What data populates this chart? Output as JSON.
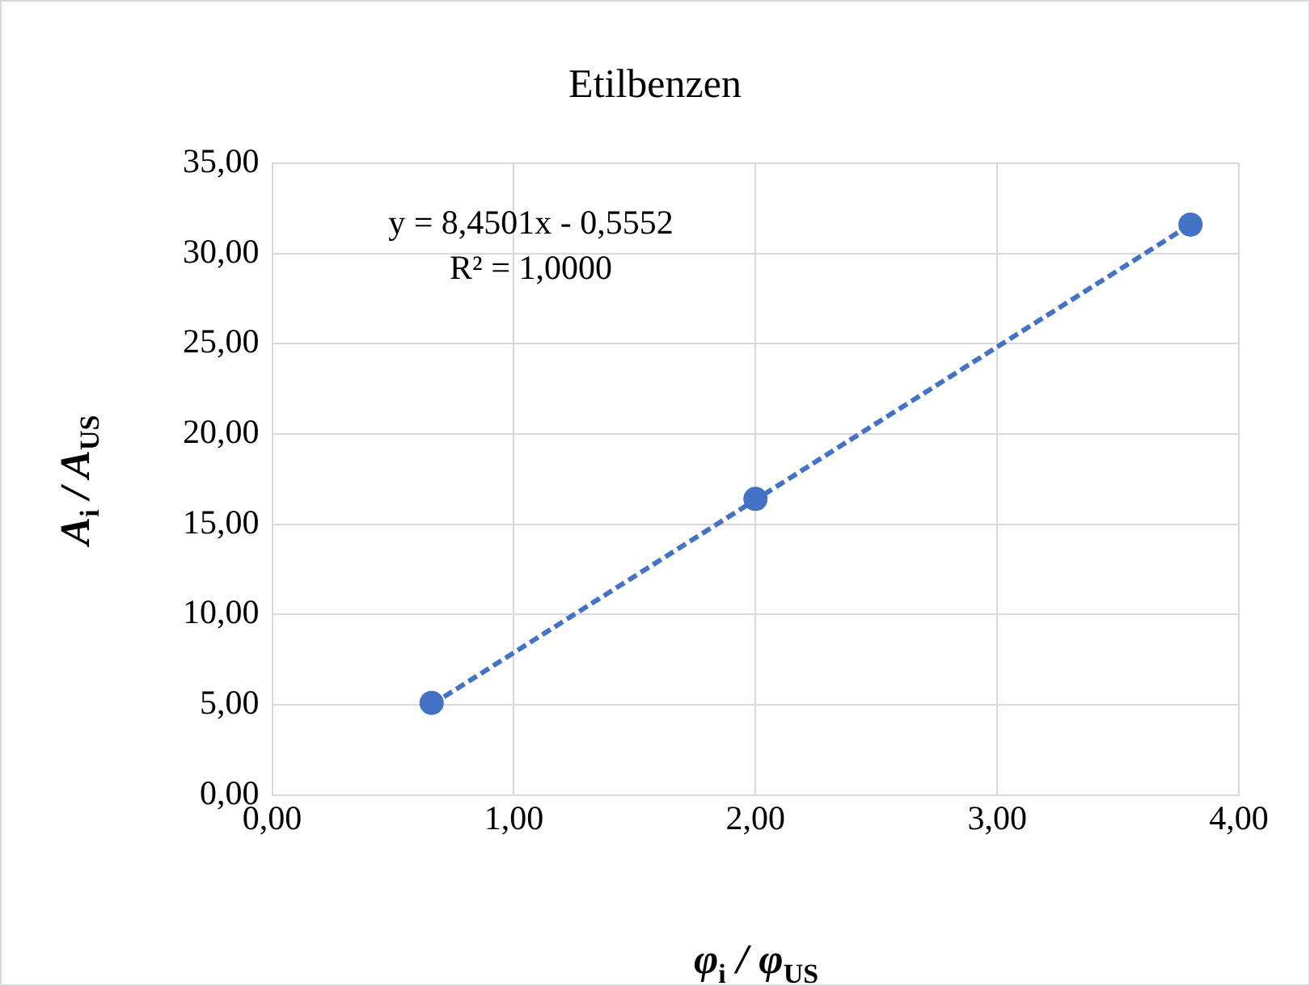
{
  "chart_data": {
    "type": "scatter",
    "title": "Etilbenzen",
    "xlabel": "φ$_{i}$ / φ$_{US}$",
    "ylabel": "A$_{i}$ / A$_{US}$",
    "series": [
      {
        "type": "scatter",
        "color": "#4472c4",
        "marker": "circle",
        "x": [
          0.66,
          2.0,
          3.8
        ],
        "values": [
          5.1,
          16.4,
          31.6
        ]
      },
      {
        "type": "line",
        "color": "#4472c4",
        "marker": "none",
        "line_style": "dashed",
        "x": [
          0.66,
          3.8
        ],
        "values": [
          5.0,
          31.6
        ]
      }
    ],
    "xlim": [
      0,
      4
    ],
    "xticks": [
      {
        "value": 0,
        "label": "0,00"
      },
      {
        "value": 1,
        "label": "1,00"
      },
      {
        "value": 2,
        "label": "2,00"
      },
      {
        "value": 3,
        "label": "3,00"
      },
      {
        "value": 4,
        "label": "4,00"
      }
    ],
    "ylim": [
      0,
      35
    ],
    "yticks": [
      {
        "value": 0,
        "label": "0,00"
      },
      {
        "value": 5,
        "label": "5,00"
      },
      {
        "value": 10,
        "label": "10,00"
      },
      {
        "value": 15,
        "label": "15,00"
      },
      {
        "value": 20,
        "label": "20,00"
      },
      {
        "value": 25,
        "label": "25,00"
      },
      {
        "value": 30,
        "label": "30,00"
      },
      {
        "value": 35,
        "label": "35,00"
      }
    ],
    "grid": true,
    "legend": false,
    "annotations": [
      "y = 8,4501x - 0,5552",
      "R² = 1,0000"
    ]
  }
}
